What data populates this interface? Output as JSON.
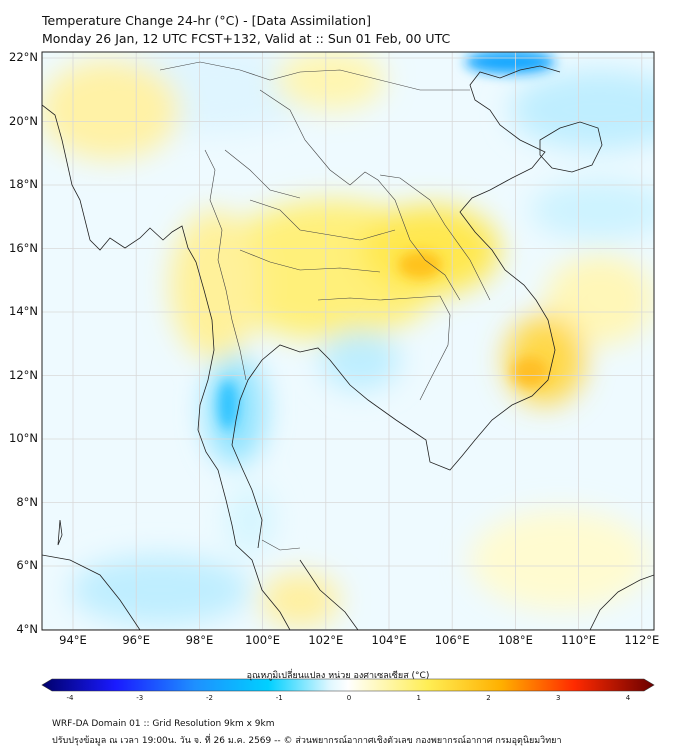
{
  "title": {
    "line1": "Temperature Change 24-hr (°C) - [Data Assimilation]",
    "line2": "Monday 26 Jan, 12 UTC FCST+132, Valid at :: Sun 01 Feb, 00 UTC"
  },
  "map": {
    "lat_labels": [
      "22°N",
      "20°N",
      "18°N",
      "16°N",
      "14°N",
      "12°N",
      "10°N",
      "8°N",
      "6°N",
      "4°N"
    ],
    "lon_labels": [
      "94°E",
      "96°E",
      "98°E",
      "100°E",
      "102°E",
      "104°E",
      "106°E",
      "108°E",
      "110°E",
      "112°E"
    ]
  },
  "colorbar": {
    "label": "อุณหภูมิเปลี่ยนแปลง หน่วย องศาเซลเซียส (°C)",
    "ticks": [
      "-4",
      "-3",
      "-2",
      "-1",
      "0",
      "1",
      "2",
      "3",
      "4"
    ]
  },
  "footer": {
    "line1": "WRF-DA Domain 01 :: Grid Resolution 9km x 9km",
    "line2": "ปรับปรุงข้อมูล ณ เวลา 19:00น. วัน จ. ที่ 26 ม.ค. 2569 -- © ส่วนพยากรณ์อากาศเชิงตัวเลข กองพยากรณ์อากาศ กรมอุตุนิยมวิทยา"
  },
  "colors": {
    "cold_strong": "#00bfff",
    "cold_light": "#bfefff",
    "warm_light": "#fff5a0",
    "warm": "#ffe200",
    "warm_strong": "#ffab00",
    "coast": "#222222",
    "border": "#555555"
  }
}
